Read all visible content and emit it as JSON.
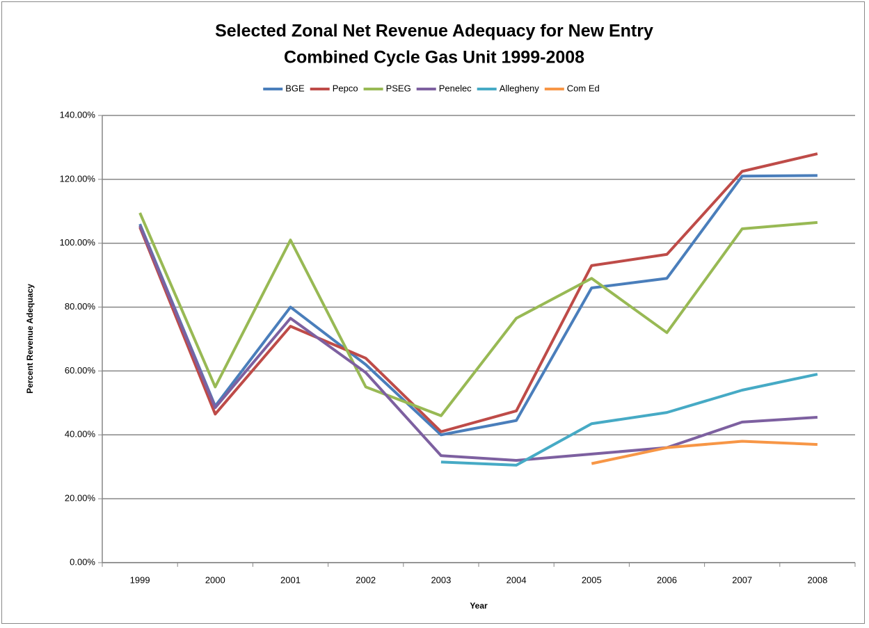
{
  "chart_data": {
    "type": "line",
    "title": [
      "Selected Zonal Net Revenue Adequacy for New Entry",
      "Combined Cycle Gas Unit 1999-2008"
    ],
    "x_label": "Year",
    "y_label": "Percent Revenue Adequacy",
    "categories": [
      "1999",
      "2000",
      "2001",
      "2002",
      "2003",
      "2004",
      "2005",
      "2006",
      "2007",
      "2008"
    ],
    "series": [
      {
        "name": "BGE",
        "color": "#4a7ebb",
        "values": [
          106,
          49,
          80,
          62,
          40,
          44.5,
          86,
          89,
          121,
          121.2
        ]
      },
      {
        "name": "Pepco",
        "color": "#be4b48",
        "values": [
          105,
          46.5,
          74,
          64,
          41,
          47.5,
          93,
          96.5,
          122.5,
          128
        ]
      },
      {
        "name": "PSEG",
        "color": "#98b954",
        "values": [
          109.5,
          55,
          101,
          55,
          46,
          76.5,
          89,
          72,
          104.5,
          106.5
        ]
      },
      {
        "name": "Penelec",
        "color": "#7d60a0",
        "values": [
          105.5,
          48.5,
          76.5,
          59.5,
          33.5,
          32,
          34,
          36,
          44,
          45.5
        ]
      },
      {
        "name": "Allegheny",
        "color": "#46aac5",
        "values": [
          null,
          null,
          null,
          null,
          31.5,
          30.5,
          43.5,
          47,
          54,
          59
        ]
      },
      {
        "name": "Com Ed",
        "color": "#f79646",
        "values": [
          null,
          null,
          null,
          null,
          null,
          null,
          31,
          36,
          38,
          37
        ]
      }
    ],
    "ylim": [
      0,
      140
    ],
    "yticks": [
      {
        "value": 0,
        "label": "0.00%"
      },
      {
        "value": 20,
        "label": "20.00%"
      },
      {
        "value": 40,
        "label": "40.00%"
      },
      {
        "value": 60,
        "label": "60.00%"
      },
      {
        "value": 80,
        "label": "80.00%"
      },
      {
        "value": 100,
        "label": "100.00%"
      },
      {
        "value": 120,
        "label": "120.00%"
      },
      {
        "value": 140,
        "label": "140.00%"
      }
    ],
    "grid": true,
    "legend": "top"
  }
}
